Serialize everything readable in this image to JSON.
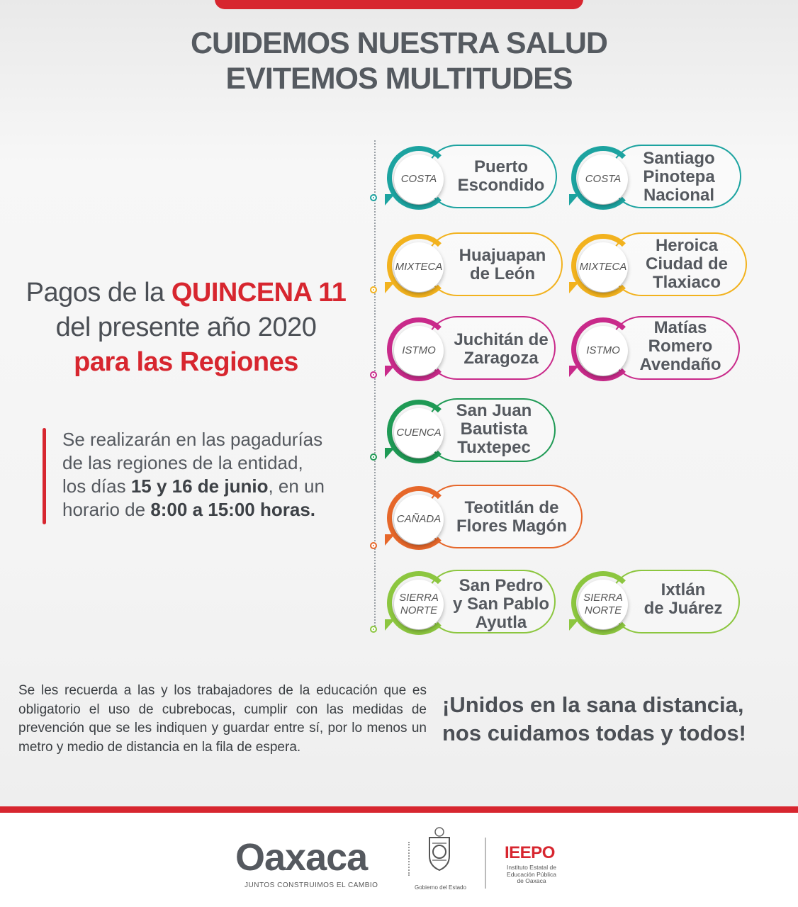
{
  "header": {
    "line1": "CUIDEMOS NUESTRA SALUD",
    "line2": "EVITEMOS MULTITUDES"
  },
  "pagos": {
    "line1_pre": "Pagos de la ",
    "line1_bold": "QUINCENA 11",
    "line2": "del presente año 2020",
    "line3": "para las Regiones"
  },
  "schedule": {
    "line1": "Se realizarán en las pagadurías",
    "line2": "de las regiones de la entidad,",
    "line3_pre": "los días ",
    "line3_bold": "15 y 16 de junio",
    "line3_post": ", en un",
    "line4_pre": "horario de ",
    "line4_bold": "8:00 a 15:00 horas."
  },
  "colors": {
    "red": "#d7262f",
    "costa": "#1ca3a0",
    "mixteca": "#f2b21e",
    "istmo": "#c92a8a",
    "cuenca": "#1f9a55",
    "canada": "#e6672a",
    "sierra": "#8cc63f"
  },
  "regions": {
    "costa": "COSTA",
    "mixteca": "MIXTECA",
    "istmo": "ISTMO",
    "cuenca": "CUENCA",
    "canada": "CAÑADA",
    "sierra_1": "SIERRA",
    "sierra_2": "NORTE"
  },
  "cities": {
    "puerto_1": "Puerto",
    "puerto_2": "Escondido",
    "pinotepa_1": "Santiago",
    "pinotepa_2": "Pinotepa",
    "pinotepa_3": "Nacional",
    "huajuapan_1": "Huajuapan",
    "huajuapan_2": "de León",
    "tlaxiaco_1": "Heroica",
    "tlaxiaco_2": "Ciudad de",
    "tlaxiaco_3": "Tlaxiaco",
    "juchitan_1": "Juchitán de",
    "juchitan_2": "Zaragoza",
    "matias_1": "Matías",
    "matias_2": "Romero",
    "matias_3": "Avendaño",
    "tuxtepec_1": "San Juan",
    "tuxtepec_2": "Bautista",
    "tuxtepec_3": "Tuxtepec",
    "teotitlan_1": "Teotitlán de",
    "teotitlan_2": "Flores Magón",
    "ayutla_1": "San Pedro",
    "ayutla_2": "y San Pablo",
    "ayutla_3": "Ayutla",
    "ixtlan_1": "Ixtlán",
    "ixtlan_2": "de Juárez"
  },
  "notice": "Se les recuerda a las y los trabajadores de la educación que es obligatorio el uso de cubrebocas, cumplir con las medidas de prevención que se les indiquen y guardar entre sí, por lo menos un metro y medio de distancia en la fila de espera.",
  "slogan": {
    "line1": "¡Unidos en la sana distancia,",
    "line2": "nos cuidamos todas y todos!"
  },
  "footer": {
    "oaxaca_logo": "Oaxaca",
    "oaxaca_tagline": "JUNTOS CONSTRUIMOS EL CAMBIO",
    "gobierno": "Gobierno del Estado",
    "ieepo": "IEEPO",
    "ieepo_line1": "Instituto Estatal de",
    "ieepo_line2": "Educación Pública",
    "ieepo_line3": "de Oaxaca"
  }
}
